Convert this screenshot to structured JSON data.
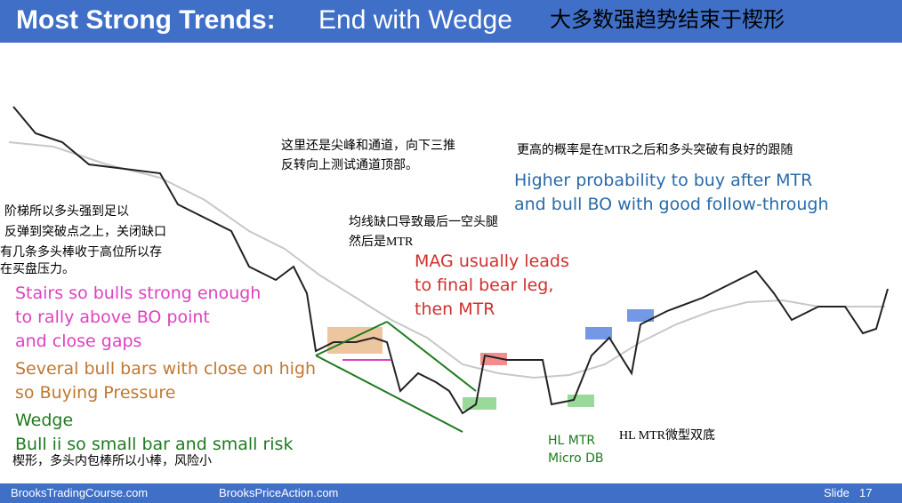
{
  "header": {
    "title_bold": "Most Strong Trends:",
    "title_rest": "End with Wedge",
    "subtitle_cn": "大多数强趋势结束于楔形"
  },
  "annotations": [
    {
      "lines": [
        "阶梯所以多头强到足以",
        "反弹到突破点之上，关闭缺口"
      ]
    },
    {
      "lines": [
        "有几条多头棒收于高位所以存",
        "在买盘压力。"
      ]
    },
    {
      "lines": [
        "Stairs so bulls strong enough",
        "to rally above BO point",
        "and close gaps"
      ]
    },
    {
      "lines": [
        "Several bull bars with close on high",
        "so Buying Pressure"
      ]
    },
    {
      "lines": [
        "Wedge",
        "Bull ii so small bar and small risk"
      ]
    },
    {
      "lines": [
        "楔形，多头内包棒所以小棒，风险小"
      ]
    },
    {
      "lines": [
        "这里还是尖峰和通道，向下三推",
        "反转向上测试通道顶部。"
      ]
    },
    {
      "lines": [
        "均线缺口导致最后一空头腿",
        "然后是MTR"
      ]
    },
    {
      "lines": [
        "MAG usually leads",
        "to final bear leg,",
        "then MTR"
      ]
    },
    {
      "lines": [
        "更高的概率是在MTR之后和多头突破有良好的跟随"
      ]
    },
    {
      "lines": [
        "Higher probability to buy after MTR",
        "and bull BO with good follow-through"
      ]
    },
    {
      "lines": [
        "HL MTR",
        "Micro DB"
      ]
    },
    {
      "lines": [
        "HL MTR微型双底"
      ]
    }
  ],
  "footer": {
    "left": "BrooksTradingCourse.com",
    "middle": "BrooksPriceAction.com",
    "slide_label": "Slide",
    "slide_number": "17"
  }
}
